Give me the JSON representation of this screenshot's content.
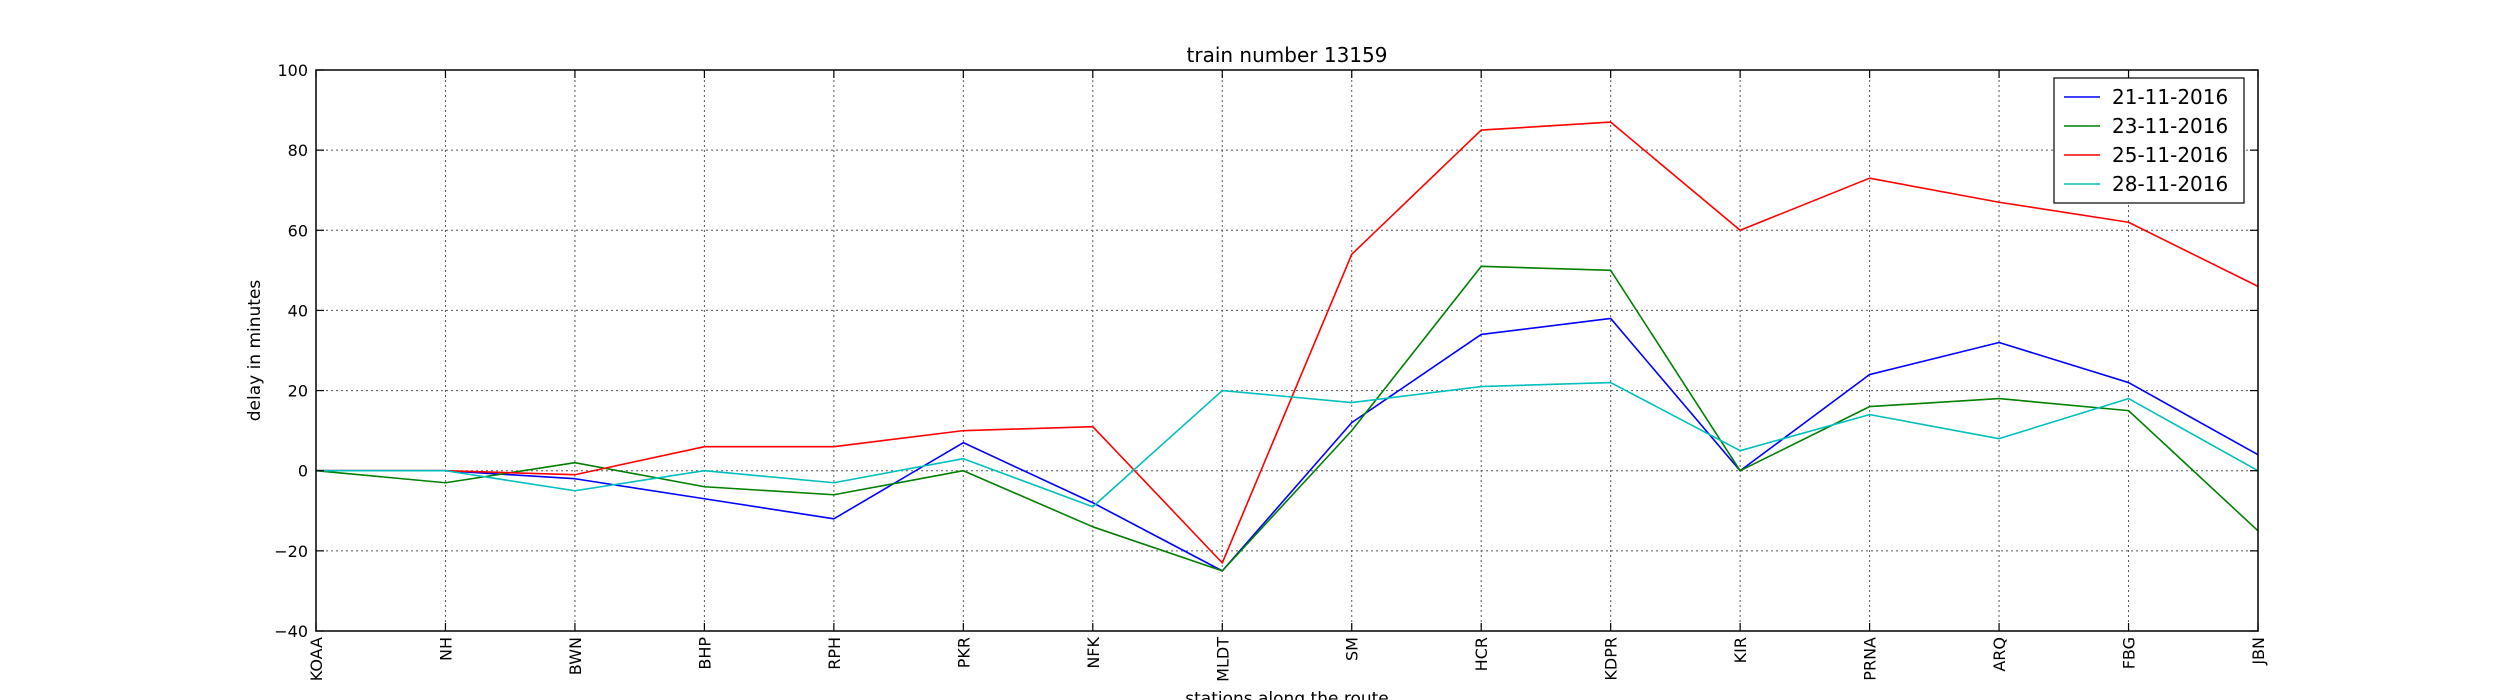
{
  "chart_data": {
    "type": "line",
    "title": "train number 13159",
    "xlabel": "stations along the route",
    "ylabel": "delay in minutes",
    "categories": [
      "KOAA",
      "NH",
      "BWN",
      "BHP",
      "RPH",
      "PKR",
      "NFK",
      "MLDT",
      "SM",
      "HCR",
      "KDPR",
      "KIR",
      "PRNA",
      "ARQ",
      "FBG",
      "JBN"
    ],
    "ylim": [
      -40,
      100
    ],
    "yticks": [
      -40,
      -20,
      0,
      20,
      40,
      60,
      80,
      100
    ],
    "ytick_labels": [
      "−40",
      "−20",
      "0",
      "20",
      "40",
      "60",
      "80",
      "100"
    ],
    "grid": true,
    "legend_position": "top-right",
    "series": [
      {
        "name": "21-11-2016",
        "color": "#0000ff",
        "values": [
          0,
          0,
          -2,
          -7,
          -12,
          7,
          -8,
          -25,
          12,
          34,
          38,
          0,
          24,
          32,
          22,
          4
        ]
      },
      {
        "name": "23-11-2016",
        "color": "#008000",
        "values": [
          0,
          -3,
          2,
          -4,
          -6,
          0,
          -14,
          -25,
          10,
          51,
          50,
          0,
          16,
          18,
          15,
          -15
        ]
      },
      {
        "name": "25-11-2016",
        "color": "#ff0000",
        "values": [
          0,
          0,
          -1,
          6,
          6,
          10,
          11,
          -23,
          54,
          85,
          87,
          60,
          73,
          67,
          62,
          46
        ]
      },
      {
        "name": "28-11-2016",
        "color": "#00bfbf",
        "values": [
          0,
          0,
          -5,
          0,
          -3,
          3,
          -9,
          20,
          17,
          21,
          22,
          5,
          14,
          8,
          18,
          0
        ]
      }
    ]
  }
}
